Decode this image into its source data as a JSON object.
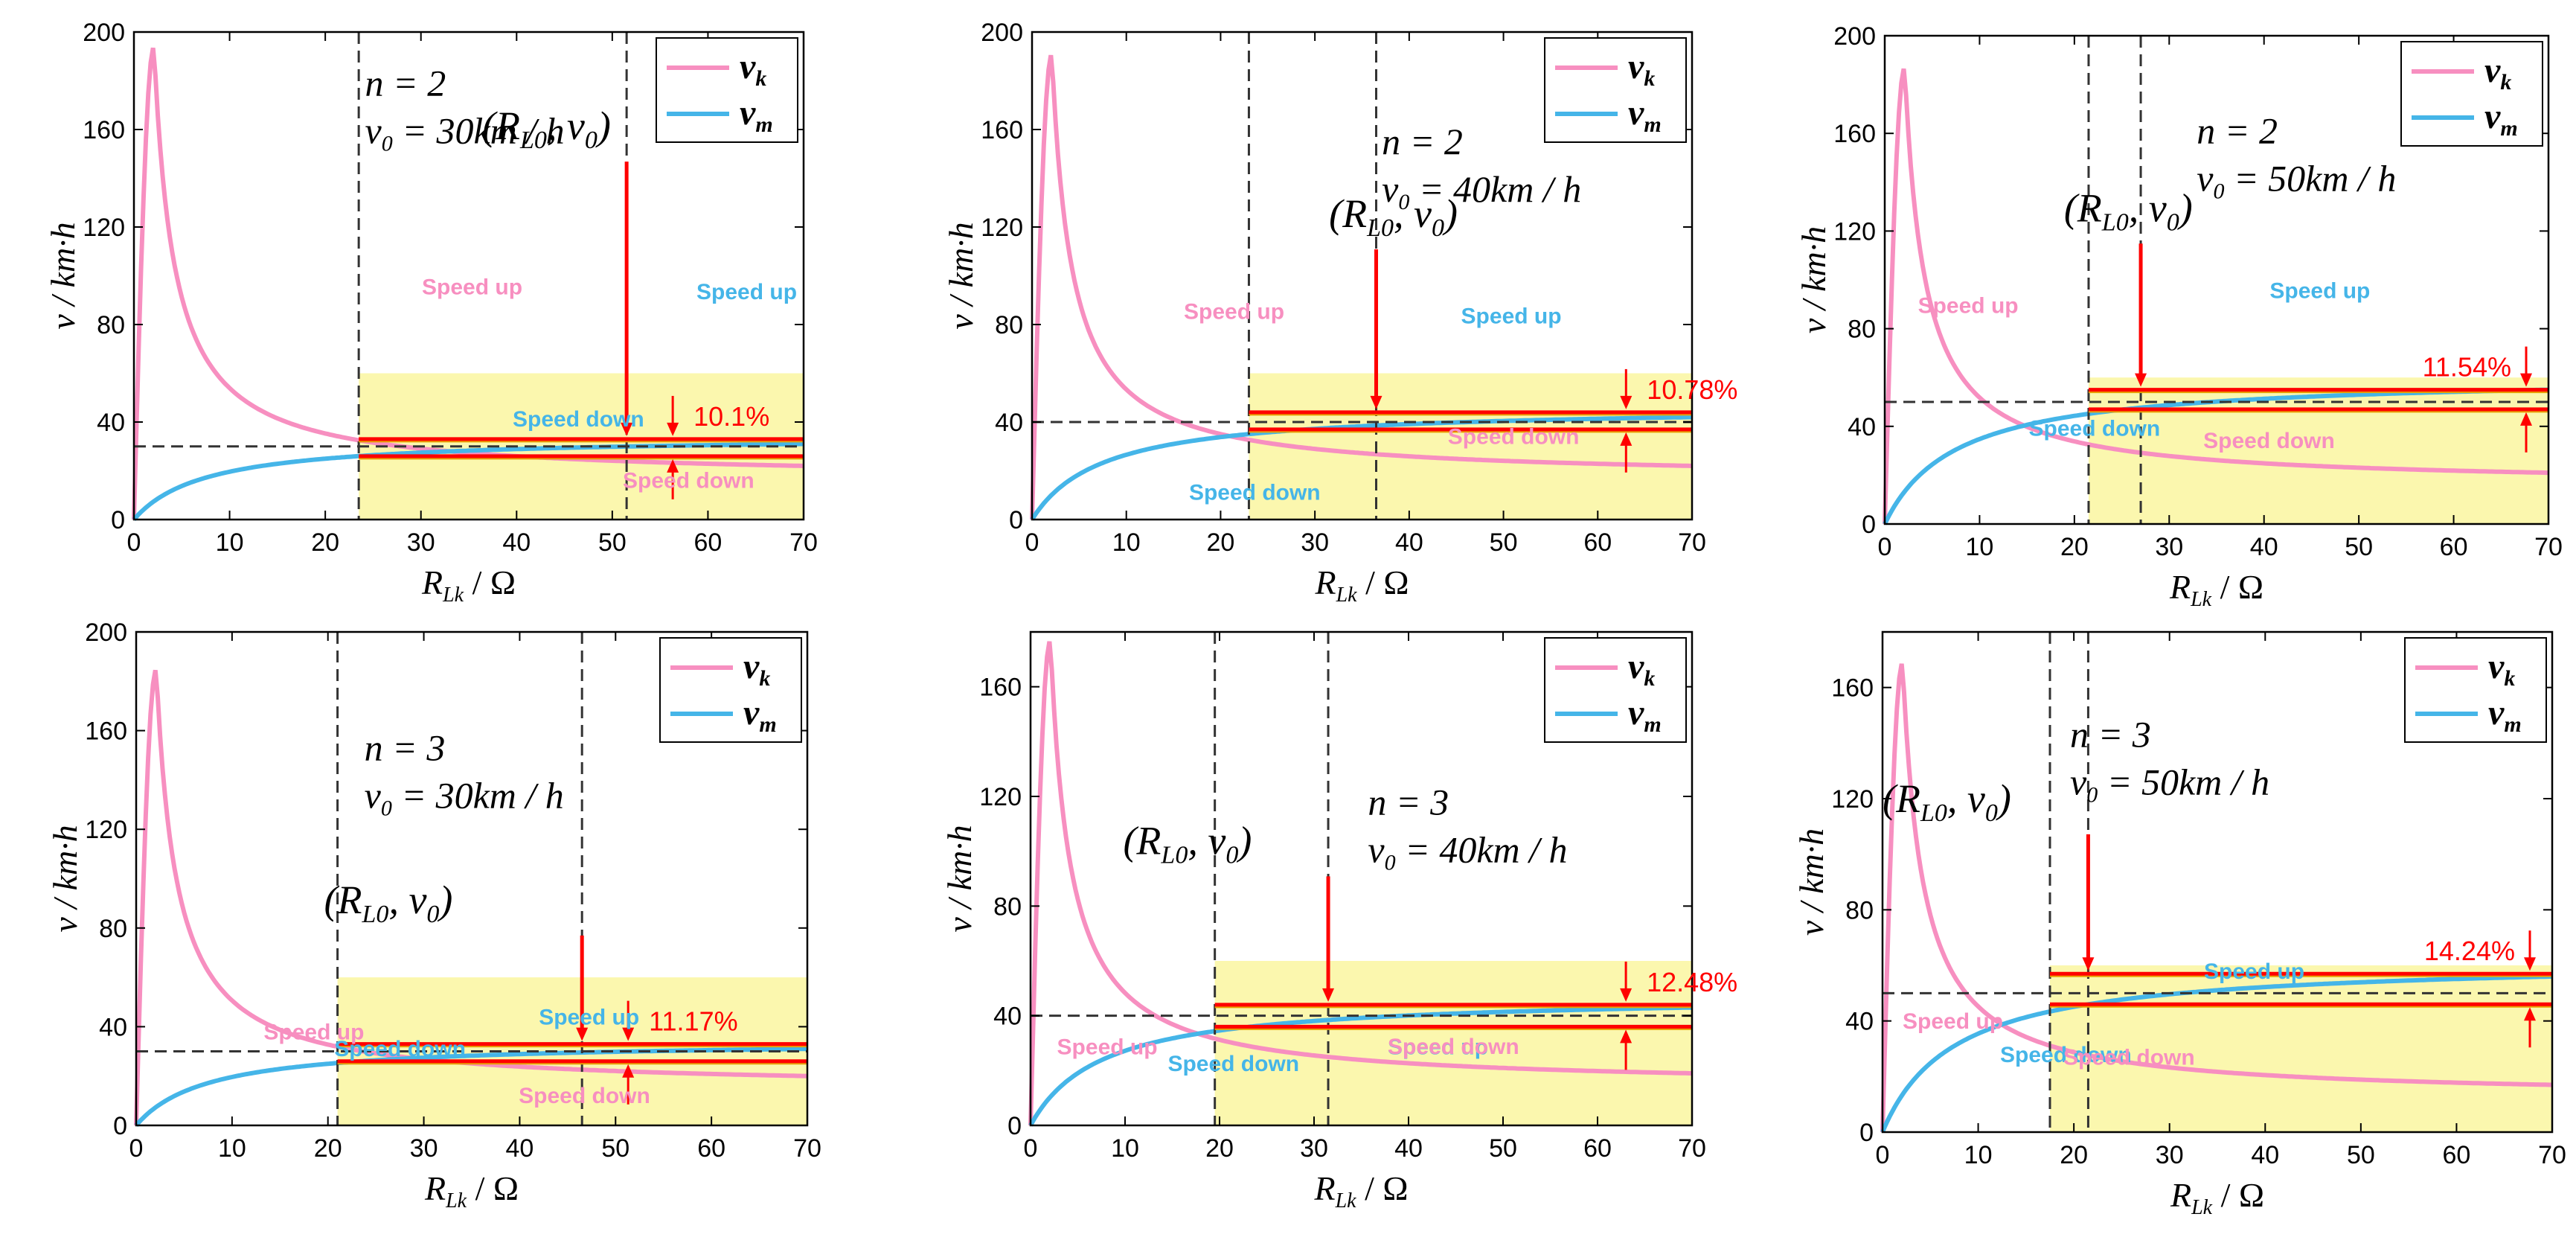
{
  "figure": {
    "legend": {
      "vk": "v_k",
      "vm": "v_m"
    },
    "colors": {
      "vk": "#f78fc0",
      "vm": "#45b5e8",
      "marker": "#ff0000",
      "zone": "#fbf7ae",
      "line": "#e8a000"
    },
    "labels": {
      "speed_up": "Speed up",
      "speed_down": "Speed down"
    },
    "xlabel": "R_Lk / Ω",
    "ylabel": "v / km·h",
    "point_label": "(R_L0, v_0)"
  },
  "chart_data": [
    {
      "type": "line",
      "panel": "n=2, v0=30",
      "n_label": "n = 2",
      "v0_label": "v0 = 30km / h",
      "xlim": [
        0,
        70
      ],
      "ylim": [
        0,
        200
      ],
      "xticks": [
        "0",
        "10",
        "20",
        "30",
        "40",
        "50",
        "60",
        "70"
      ],
      "yticks": [
        "0",
        "40",
        "80",
        "120",
        "160",
        "200"
      ],
      "x1": 23.5,
      "x2": 51.5,
      "v0": 30,
      "pct": "10.1%",
      "band": [
        26,
        33
      ],
      "vk_peak": 194,
      "vk_end": 22,
      "vm_end": 31
    },
    {
      "type": "line",
      "panel": "n=2, v0=40",
      "n_label": "n = 2",
      "v0_label": "v0 = 40km / h",
      "xlim": [
        0,
        70
      ],
      "ylim": [
        0,
        200
      ],
      "xticks": [
        "0",
        "10",
        "20",
        "30",
        "40",
        "50",
        "60",
        "70"
      ],
      "yticks": [
        "0",
        "40",
        "80",
        "120",
        "160",
        "200"
      ],
      "x1": 23,
      "x2": 36.5,
      "v0": 40,
      "pct": "10.78%",
      "band": [
        37,
        44
      ],
      "vk_peak": 191,
      "vk_end": 22,
      "vm_end": 42
    },
    {
      "type": "line",
      "panel": "n=2, v0=50",
      "n_label": "n = 2",
      "v0_label": "v0 = 50km / h",
      "xlim": [
        0,
        70
      ],
      "ylim": [
        0,
        200
      ],
      "xticks": [
        "0",
        "10",
        "20",
        "30",
        "40",
        "50",
        "60",
        "70"
      ],
      "yticks": [
        "0",
        "40",
        "80",
        "120",
        "160",
        "200"
      ],
      "x1": 21.5,
      "x2": 27,
      "v0": 50,
      "pct": "11.54%",
      "band": [
        47,
        55
      ],
      "vk_peak": 187,
      "vk_end": 21,
      "vm_end": 55
    },
    {
      "type": "line",
      "panel": "n=3, v0=30",
      "n_label": "n = 3",
      "v0_label": "v0 = 30km / h",
      "xlim": [
        0,
        70
      ],
      "ylim": [
        0,
        200
      ],
      "xticks": [
        "0",
        "10",
        "20",
        "30",
        "40",
        "50",
        "60",
        "70"
      ],
      "yticks": [
        "0",
        "40",
        "80",
        "120",
        "160",
        "200"
      ],
      "x1": 21,
      "x2": 46.5,
      "v0": 30,
      "pct": "11.17%",
      "band": [
        26,
        33
      ],
      "vk_peak": 185,
      "vk_end": 20,
      "vm_end": 31
    },
    {
      "type": "line",
      "panel": "n=3, v0=40",
      "n_label": "n = 3",
      "v0_label": "v0 = 40km / h",
      "xlim": [
        0,
        70
      ],
      "ylim": [
        0,
        180
      ],
      "xticks": [
        "0",
        "10",
        "20",
        "30",
        "40",
        "50",
        "60",
        "70"
      ],
      "yticks": [
        "0",
        "40",
        "80",
        "120",
        "160"
      ],
      "x1": 19.5,
      "x2": 31.5,
      "v0": 40,
      "pct": "12.48%",
      "band": [
        36,
        44
      ],
      "vk_peak": 177,
      "vk_end": 19,
      "vm_end": 43
    },
    {
      "type": "line",
      "panel": "n=3, v0=50",
      "n_label": "n = 3",
      "v0_label": "v0 = 50km / h",
      "xlim": [
        0,
        70
      ],
      "ylim": [
        0,
        180
      ],
      "xticks": [
        "0",
        "10",
        "20",
        "30",
        "40",
        "50",
        "60",
        "70"
      ],
      "yticks": [
        "0",
        "40",
        "80",
        "120",
        "160"
      ],
      "x1": 17.5,
      "x2": 21.5,
      "v0": 50,
      "pct": "14.24%",
      "band": [
        46,
        57
      ],
      "vk_peak": 169,
      "vk_end": 17,
      "vm_end": 56
    }
  ]
}
